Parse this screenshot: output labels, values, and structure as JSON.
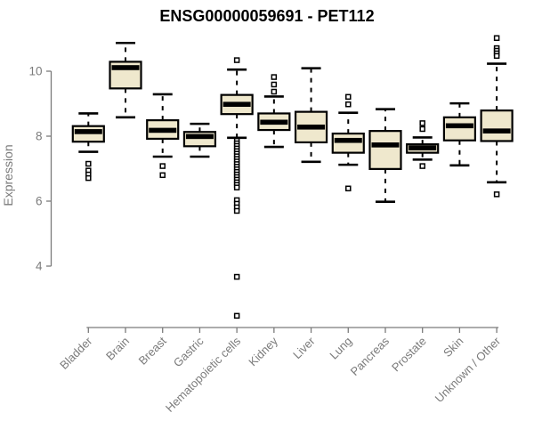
{
  "chart_data": {
    "type": "boxplot",
    "title": "ENSG00000059691 - PET112",
    "ylabel": "Expression",
    "xlabel": "",
    "yticks": [
      4,
      6,
      8,
      10
    ],
    "ylim": [
      2.0,
      11.3
    ],
    "grid": false,
    "legend": "none",
    "box_fill_color": "#efe8cd",
    "box_line_color": "#000000",
    "axis_color": "#7b7b7b",
    "title_color": "#000000",
    "categories": [
      "Bladder",
      "Brain",
      "Breast",
      "Gastric",
      "Hematopoietic cells",
      "Kidney",
      "Liver",
      "Lung",
      "Pancreas",
      "Prostate",
      "Skin",
      "Unknown / Other"
    ],
    "boxes": [
      {
        "category": "Bladder",
        "id": "bladder",
        "whisker_low": 7.52,
        "q1": 7.83,
        "median": 8.14,
        "q3": 8.31,
        "whisker_high": 8.7,
        "outliers": [
          7.15,
          6.94,
          6.82,
          6.71
        ]
      },
      {
        "category": "Brain",
        "id": "brain",
        "whisker_low": 8.58,
        "q1": 9.47,
        "median": 10.11,
        "q3": 10.29,
        "whisker_high": 10.87,
        "outliers": []
      },
      {
        "category": "Breast",
        "id": "breast",
        "whisker_low": 7.37,
        "q1": 7.92,
        "median": 8.18,
        "q3": 8.49,
        "whisker_high": 9.29,
        "outliers": [
          7.08,
          6.8
        ]
      },
      {
        "category": "Gastric",
        "id": "gastric",
        "whisker_low": 7.37,
        "q1": 7.69,
        "median": 7.99,
        "q3": 8.13,
        "whisker_high": 8.38,
        "outliers": []
      },
      {
        "category": "Hematopoietic cells",
        "id": "hematopoietic-cells",
        "whisker_low": 7.95,
        "q1": 8.68,
        "median": 8.98,
        "q3": 9.27,
        "whisker_high": 10.05,
        "outliers": [
          10.34,
          7.86,
          7.78,
          7.7,
          7.62,
          7.54,
          7.46,
          7.38,
          7.3,
          7.22,
          7.14,
          7.06,
          6.98,
          6.9,
          6.82,
          6.74,
          6.66,
          6.58,
          6.5,
          6.42,
          6.03,
          5.92,
          5.81,
          5.7,
          3.67,
          2.47
        ]
      },
      {
        "category": "Kidney",
        "id": "kidney",
        "whisker_low": 7.67,
        "q1": 8.19,
        "median": 8.43,
        "q3": 8.7,
        "whisker_high": 9.22,
        "outliers": [
          9.82,
          9.59,
          9.37
        ]
      },
      {
        "category": "Liver",
        "id": "liver",
        "whisker_low": 7.21,
        "q1": 7.81,
        "median": 8.28,
        "q3": 8.75,
        "whisker_high": 10.09,
        "outliers": []
      },
      {
        "category": "Lung",
        "id": "lung",
        "whisker_low": 7.12,
        "q1": 7.49,
        "median": 7.87,
        "q3": 8.08,
        "whisker_high": 8.72,
        "outliers": [
          9.21,
          8.98,
          6.39
        ]
      },
      {
        "category": "Pancreas",
        "id": "pancreas",
        "whisker_low": 5.98,
        "q1": 6.99,
        "median": 7.73,
        "q3": 8.16,
        "whisker_high": 8.83,
        "outliers": []
      },
      {
        "category": "Prostate",
        "id": "prostate",
        "whisker_low": 7.28,
        "q1": 7.49,
        "median": 7.64,
        "q3": 7.75,
        "whisker_high": 7.96,
        "outliers": [
          8.4,
          8.22,
          7.08
        ]
      },
      {
        "category": "Skin",
        "id": "skin",
        "whisker_low": 7.1,
        "q1": 7.87,
        "median": 8.32,
        "q3": 8.58,
        "whisker_high": 9.01,
        "outliers": []
      },
      {
        "category": "Unknown / Other",
        "id": "unknown-other",
        "whisker_low": 6.58,
        "q1": 7.85,
        "median": 8.16,
        "q3": 8.79,
        "whisker_high": 10.23,
        "outliers": [
          11.02,
          10.71,
          10.63,
          10.55,
          10.47,
          6.21
        ]
      }
    ]
  }
}
